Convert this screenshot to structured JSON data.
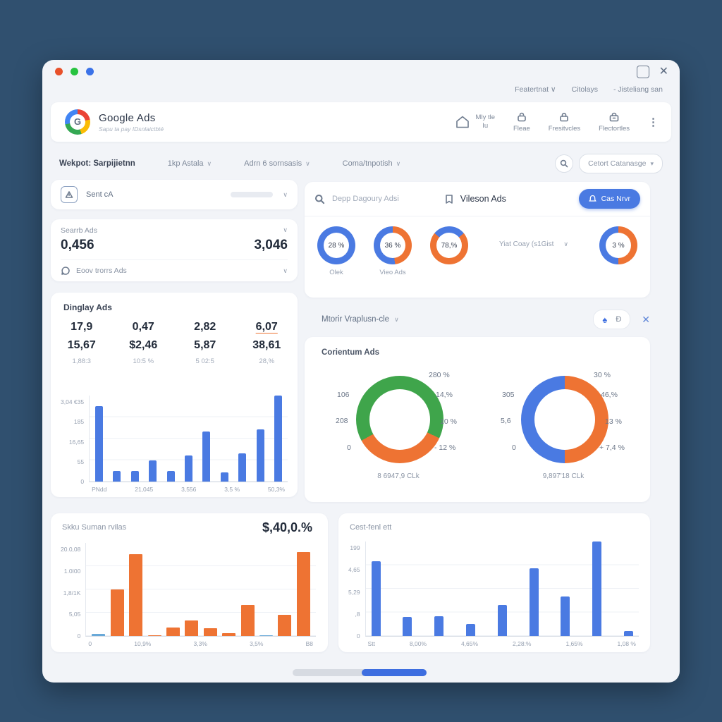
{
  "colors": {
    "blue": "#4a7ae2",
    "orange": "#ee7333",
    "green": "#3fa54b",
    "teal": "#69a9d8",
    "dark": "#222b3a",
    "gray": "#8b95a5"
  },
  "window": {
    "traffic_lights": [
      "#e8502a",
      "#27c340",
      "#3b72e8"
    ],
    "titlebar_links": [
      "Featertnat ∨",
      "Citolays",
      "- Jisteliang san"
    ],
    "close_glyph": "✕"
  },
  "header": {
    "app_title": "Google Ads",
    "app_subtitle": "Sapu ta pay IDsnlaictbté",
    "nav": {
      "home_label": "Mly tle",
      "home_sub": "Iu",
      "item1": "Fleae",
      "item2": "Fresitvcles",
      "item3": "Flectortles",
      "kebab": "⋮"
    }
  },
  "filters": {
    "label": "Wekpot: Sarpijietnn",
    "dd1": "1kp Astala",
    "dd2": "Adrn 6 sornsasis",
    "dd3": "Coma/tnpotish",
    "search_pill": "Cetort Catanasge"
  },
  "sent_card": {
    "label": "Sent cA"
  },
  "search_ads": {
    "title": "Searrb Ads",
    "value_left": "0,456",
    "value_right": "3,046",
    "row_label": "Eoov trorrs Ads"
  },
  "display": {
    "title": "Dinglay Ads",
    "metrics_row1": [
      "17,9",
      "0,47",
      "2,82",
      "6,07"
    ],
    "metrics_row2": [
      "15,67",
      "$2,46",
      "5,87",
      "38,61"
    ],
    "metrics_row3": [
      "1,88:3",
      "10:5 %",
      "5 02:5",
      "28,%"
    ],
    "chart": {
      "type": "bar",
      "color": "#4a7ae2",
      "y_labels": [
        "3,04 €35",
        "185",
        "16,65",
        "55",
        "0"
      ],
      "x_labels": [
        "PNdd",
        "21,045",
        "3,556",
        "3,5 %",
        "50,3%"
      ],
      "values": [
        0.88,
        0.12,
        0.12,
        0.25,
        0.12,
        0.3,
        0.58,
        0.11,
        0.33,
        0.61,
        1.0
      ]
    }
  },
  "gauges": {
    "search_placeholder": "Depp Dagoury Adsi",
    "bookmark_label": "Vileson Ads",
    "button_label": "Cas Nrvr",
    "dropdown_label": "Yiat Coay (s1Gist",
    "items": [
      {
        "value": "28 %",
        "label": "Olek",
        "segments": [
          {
            "color": "#4a7ae2",
            "pct": 100
          }
        ]
      },
      {
        "value": "36 %",
        "label": "Vieo Ads",
        "segments": [
          {
            "color": "#ee7333",
            "pct": 48
          },
          {
            "color": "#4a7ae2",
            "pct": 52
          }
        ]
      },
      {
        "value": "78,%",
        "label": "",
        "segments": [
          {
            "color": "#4a7ae2",
            "pct": 14
          },
          {
            "color": "#ee7333",
            "pct": 72
          },
          {
            "color": "#4a7ae2",
            "pct": 14
          }
        ]
      },
      {
        "value": "3 %",
        "label": "",
        "segments": [
          {
            "color": "#ee7333",
            "pct": 50
          },
          {
            "color": "#4a7ae2",
            "pct": 50
          }
        ]
      }
    ]
  },
  "mtorr": {
    "label": "Mtorir Vraplusn-cle",
    "spade": "♠",
    "bchar": "Ð",
    "close": "✕"
  },
  "corientum": {
    "title": "Corientum Ads",
    "donut_left": {
      "type": "donut",
      "segments": [
        {
          "color": "#3fa54b",
          "pct": 32
        },
        {
          "color": "#ee7333",
          "pct": 35
        },
        {
          "color": "#3fa54b",
          "pct": 33
        }
      ],
      "left_labels": [
        "106",
        "208",
        "0"
      ],
      "right_labels": [
        "280 %",
        "14,%",
        "10 %",
        "- 12 %"
      ],
      "caption": "8 6947,9 CLk"
    },
    "donut_right": {
      "type": "donut",
      "segments": [
        {
          "color": "#ee7333",
          "pct": 50
        },
        {
          "color": "#4a7ae2",
          "pct": 50
        }
      ],
      "left_labels": [
        "305",
        "5,6",
        "0"
      ],
      "right_labels": [
        "30 %",
        "46,%",
        "13 %",
        "+ 7,4 %"
      ],
      "caption": "9,897'18 CLk"
    }
  },
  "sku": {
    "title": "Skku Suman rvilas",
    "big_value": "$,40,0.%",
    "chart": {
      "type": "bar",
      "color": "#ee7333",
      "bar_colors": [
        "#69a9d8",
        null,
        null,
        null,
        null,
        null,
        null,
        null,
        null,
        "#69a9d8",
        null,
        null
      ],
      "y_labels": [
        "20.0,08",
        "1.0I00",
        "1,8/1K",
        "5,05",
        "0"
      ],
      "x_labels": [
        "0",
        "10,9%",
        "3,3%",
        "3,5%",
        "B8"
      ],
      "values": [
        0.02,
        0.5,
        0.88,
        0.01,
        0.09,
        0.17,
        0.08,
        0.03,
        0.33,
        0.01,
        0.23,
        0.9
      ]
    }
  },
  "cost": {
    "title": "Cest-fenl ett",
    "chart": {
      "type": "bar",
      "color": "#4a7ae2",
      "y_labels": [
        "199",
        "4,65",
        "5,29",
        ",8",
        "0"
      ],
      "x_labels": [
        "Stt",
        "8,00%",
        "4,65%",
        "2,28:%",
        "1,65%",
        "1,08 %"
      ],
      "values": [
        0.79,
        0.2,
        0.21,
        0.13,
        0.33,
        0.72,
        0.42,
        1.0,
        0.05
      ]
    }
  }
}
